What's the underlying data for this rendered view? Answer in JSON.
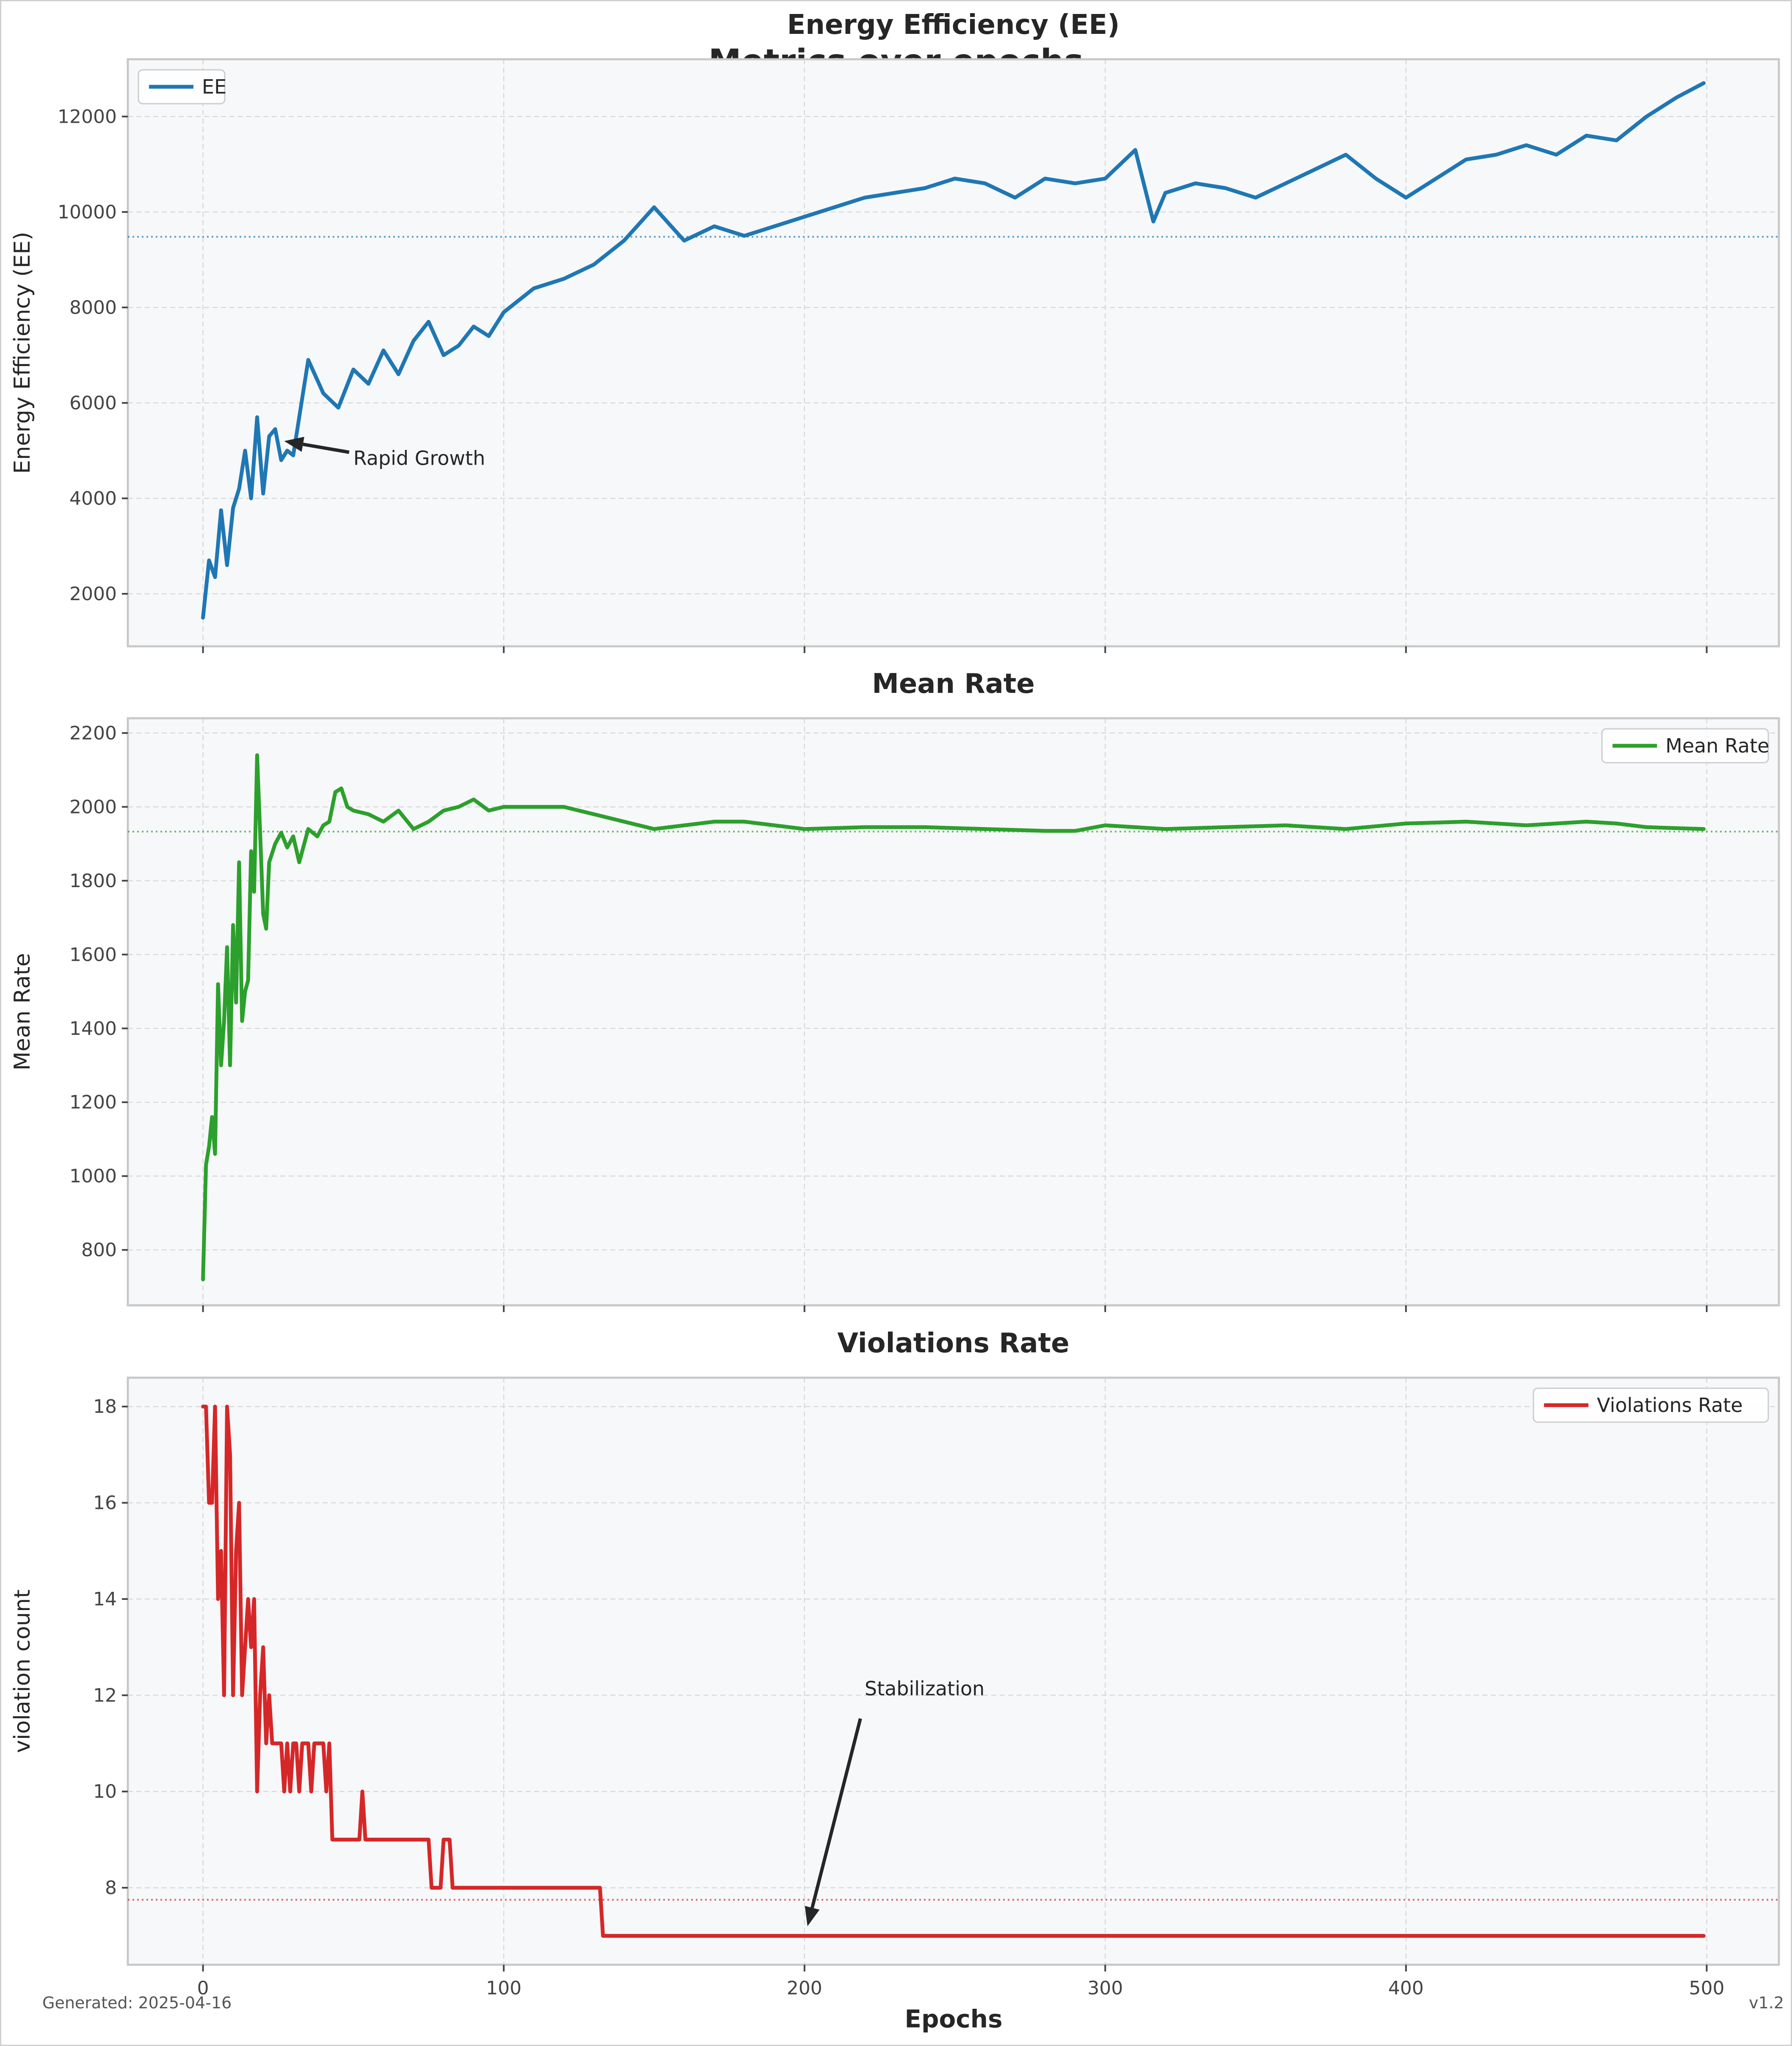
{
  "figure": {
    "suptitle": "Metrics over epochs",
    "footer_left": "Generated: 2025-04-16",
    "footer_right": "v1.2",
    "xlabel": "Epochs"
  },
  "chart_data": [
    {
      "type": "line",
      "title": "Energy Efficiency (EE)",
      "ylabel": "Energy Efficiency (EE)",
      "xlabel": "",
      "xlim": [
        -25,
        524
      ],
      "ylim": [
        900,
        13200
      ],
      "x_ticks": [
        0,
        100,
        200,
        300,
        400,
        500
      ],
      "x_tick_labels": [],
      "y_ticks": [
        2000,
        4000,
        6000,
        8000,
        10000,
        12000
      ],
      "y_tick_labels": [
        "2000",
        "4000",
        "6000",
        "8000",
        "10000",
        "12000"
      ],
      "grid": true,
      "legend": "top-left",
      "reference_line": 9480,
      "series": [
        {
          "name": "EE",
          "color": "#1f77b4",
          "x": [
            0,
            2,
            4,
            6,
            8,
            10,
            12,
            14,
            16,
            18,
            20,
            22,
            24,
            26,
            28,
            30,
            35,
            40,
            45,
            50,
            55,
            60,
            65,
            70,
            75,
            80,
            85,
            90,
            95,
            100,
            110,
            120,
            130,
            140,
            150,
            160,
            170,
            180,
            190,
            200,
            210,
            220,
            230,
            240,
            250,
            260,
            270,
            280,
            290,
            300,
            310,
            316,
            320,
            330,
            340,
            350,
            360,
            370,
            380,
            390,
            400,
            410,
            420,
            430,
            440,
            450,
            460,
            470,
            480,
            490,
            499
          ],
          "values": [
            1500,
            2700,
            2350,
            3750,
            2600,
            3800,
            4200,
            5000,
            4000,
            5700,
            4100,
            5300,
            5450,
            4800,
            5000,
            4900,
            6900,
            6200,
            5900,
            6700,
            6400,
            7100,
            6600,
            7300,
            7700,
            7000,
            7200,
            7600,
            7400,
            7900,
            8400,
            8600,
            8900,
            9400,
            10100,
            9400,
            9700,
            9500,
            9700,
            9900,
            10100,
            10300,
            10400,
            10500,
            10700,
            10600,
            10300,
            10700,
            10600,
            10700,
            11300,
            9800,
            10400,
            10600,
            10500,
            10300,
            10600,
            10900,
            11200,
            10700,
            10300,
            10700,
            11100,
            11200,
            11400,
            11200,
            11600,
            11500,
            12000,
            12400,
            12700
          ]
        }
      ],
      "annotations": [
        {
          "text": "Rapid Growth",
          "x": 50,
          "y": 4700,
          "arrow_to_x": 27,
          "arrow_to_y": 5200
        }
      ]
    },
    {
      "type": "line",
      "title": "Mean Rate",
      "ylabel": "Mean Rate",
      "xlabel": "",
      "xlim": [
        -25,
        524
      ],
      "ylim": [
        650,
        2240
      ],
      "x_ticks": [
        0,
        100,
        200,
        300,
        400,
        500
      ],
      "x_tick_labels": [],
      "y_ticks": [
        800,
        1000,
        1200,
        1400,
        1600,
        1800,
        2000,
        2200
      ],
      "y_tick_labels": [
        "800",
        "1000",
        "1200",
        "1400",
        "1600",
        "1800",
        "2000",
        "2200"
      ],
      "grid": true,
      "legend": "top-right",
      "reference_line": 1933,
      "series": [
        {
          "name": "Mean Rate",
          "color": "#2ca02c",
          "x": [
            0,
            1,
            2,
            3,
            4,
            5,
            6,
            7,
            8,
            9,
            10,
            11,
            12,
            13,
            14,
            15,
            16,
            17,
            18,
            19,
            20,
            21,
            22,
            24,
            26,
            28,
            30,
            32,
            35,
            38,
            40,
            42,
            44,
            46,
            48,
            50,
            55,
            60,
            65,
            70,
            75,
            80,
            85,
            90,
            95,
            100,
            110,
            120,
            130,
            140,
            150,
            160,
            170,
            180,
            190,
            200,
            220,
            240,
            260,
            280,
            290,
            300,
            320,
            340,
            360,
            380,
            400,
            420,
            440,
            460,
            470,
            480,
            499
          ],
          "values": [
            720,
            1030,
            1080,
            1160,
            1060,
            1520,
            1300,
            1420,
            1620,
            1300,
            1680,
            1470,
            1850,
            1420,
            1500,
            1530,
            1880,
            1770,
            2140,
            1930,
            1710,
            1670,
            1850,
            1900,
            1930,
            1890,
            1920,
            1850,
            1940,
            1920,
            1950,
            1960,
            2040,
            2050,
            2000,
            1990,
            1980,
            1960,
            1990,
            1940,
            1960,
            1990,
            2000,
            2020,
            1990,
            2000,
            2000,
            2000,
            1980,
            1960,
            1940,
            1950,
            1960,
            1960,
            1950,
            1940,
            1945,
            1945,
            1940,
            1935,
            1935,
            1950,
            1940,
            1945,
            1950,
            1940,
            1955,
            1960,
            1950,
            1960,
            1955,
            1945,
            1940
          ]
        }
      ],
      "annotations": []
    },
    {
      "type": "line",
      "title": "Violations Rate",
      "ylabel": "violation count",
      "xlabel": "Epochs",
      "xlim": [
        -25,
        524
      ],
      "ylim": [
        6.4,
        18.6
      ],
      "x_ticks": [
        0,
        100,
        200,
        300,
        400,
        500
      ],
      "x_tick_labels": [
        "0",
        "100",
        "200",
        "300",
        "400",
        "500"
      ],
      "y_ticks": [
        8,
        10,
        12,
        14,
        16,
        18
      ],
      "y_tick_labels": [
        "8",
        "10",
        "12",
        "14",
        "16",
        "18"
      ],
      "grid": true,
      "legend": "top-right",
      "reference_line": 7.75,
      "series": [
        {
          "name": "Violations Rate",
          "color": "#d62728",
          "x": [
            0,
            1,
            2,
            3,
            4,
            5,
            6,
            7,
            8,
            9,
            10,
            11,
            12,
            13,
            14,
            15,
            16,
            17,
            18,
            19,
            20,
            21,
            22,
            23,
            24,
            25,
            26,
            27,
            28,
            29,
            30,
            31,
            32,
            33,
            34,
            35,
            36,
            37,
            38,
            39,
            40,
            41,
            42,
            43,
            50,
            52,
            53,
            54,
            60,
            70,
            75,
            76,
            77,
            79,
            80,
            81,
            82,
            83,
            90,
            100,
            120,
            132,
            133,
            140,
            200,
            300,
            400,
            499
          ],
          "values": [
            18,
            18,
            16,
            16,
            18,
            14,
            15,
            12,
            18,
            17,
            12,
            15,
            16,
            12,
            13,
            14,
            13,
            14,
            10,
            12,
            13,
            11,
            12,
            11,
            11,
            11,
            11,
            10,
            11,
            10,
            11,
            11,
            10,
            11,
            11,
            11,
            10,
            11,
            11,
            11,
            11,
            10,
            11,
            9,
            9,
            9,
            10,
            9,
            9,
            9,
            9,
            8,
            8,
            8,
            9,
            9,
            9,
            8,
            8,
            8,
            8,
            8,
            7,
            7,
            7,
            7,
            7,
            7
          ]
        }
      ],
      "annotations": [
        {
          "text": "Stabilization",
          "x": 220,
          "y": 12,
          "arrow_to_x": 201,
          "arrow_to_y": 7.2
        }
      ]
    }
  ]
}
